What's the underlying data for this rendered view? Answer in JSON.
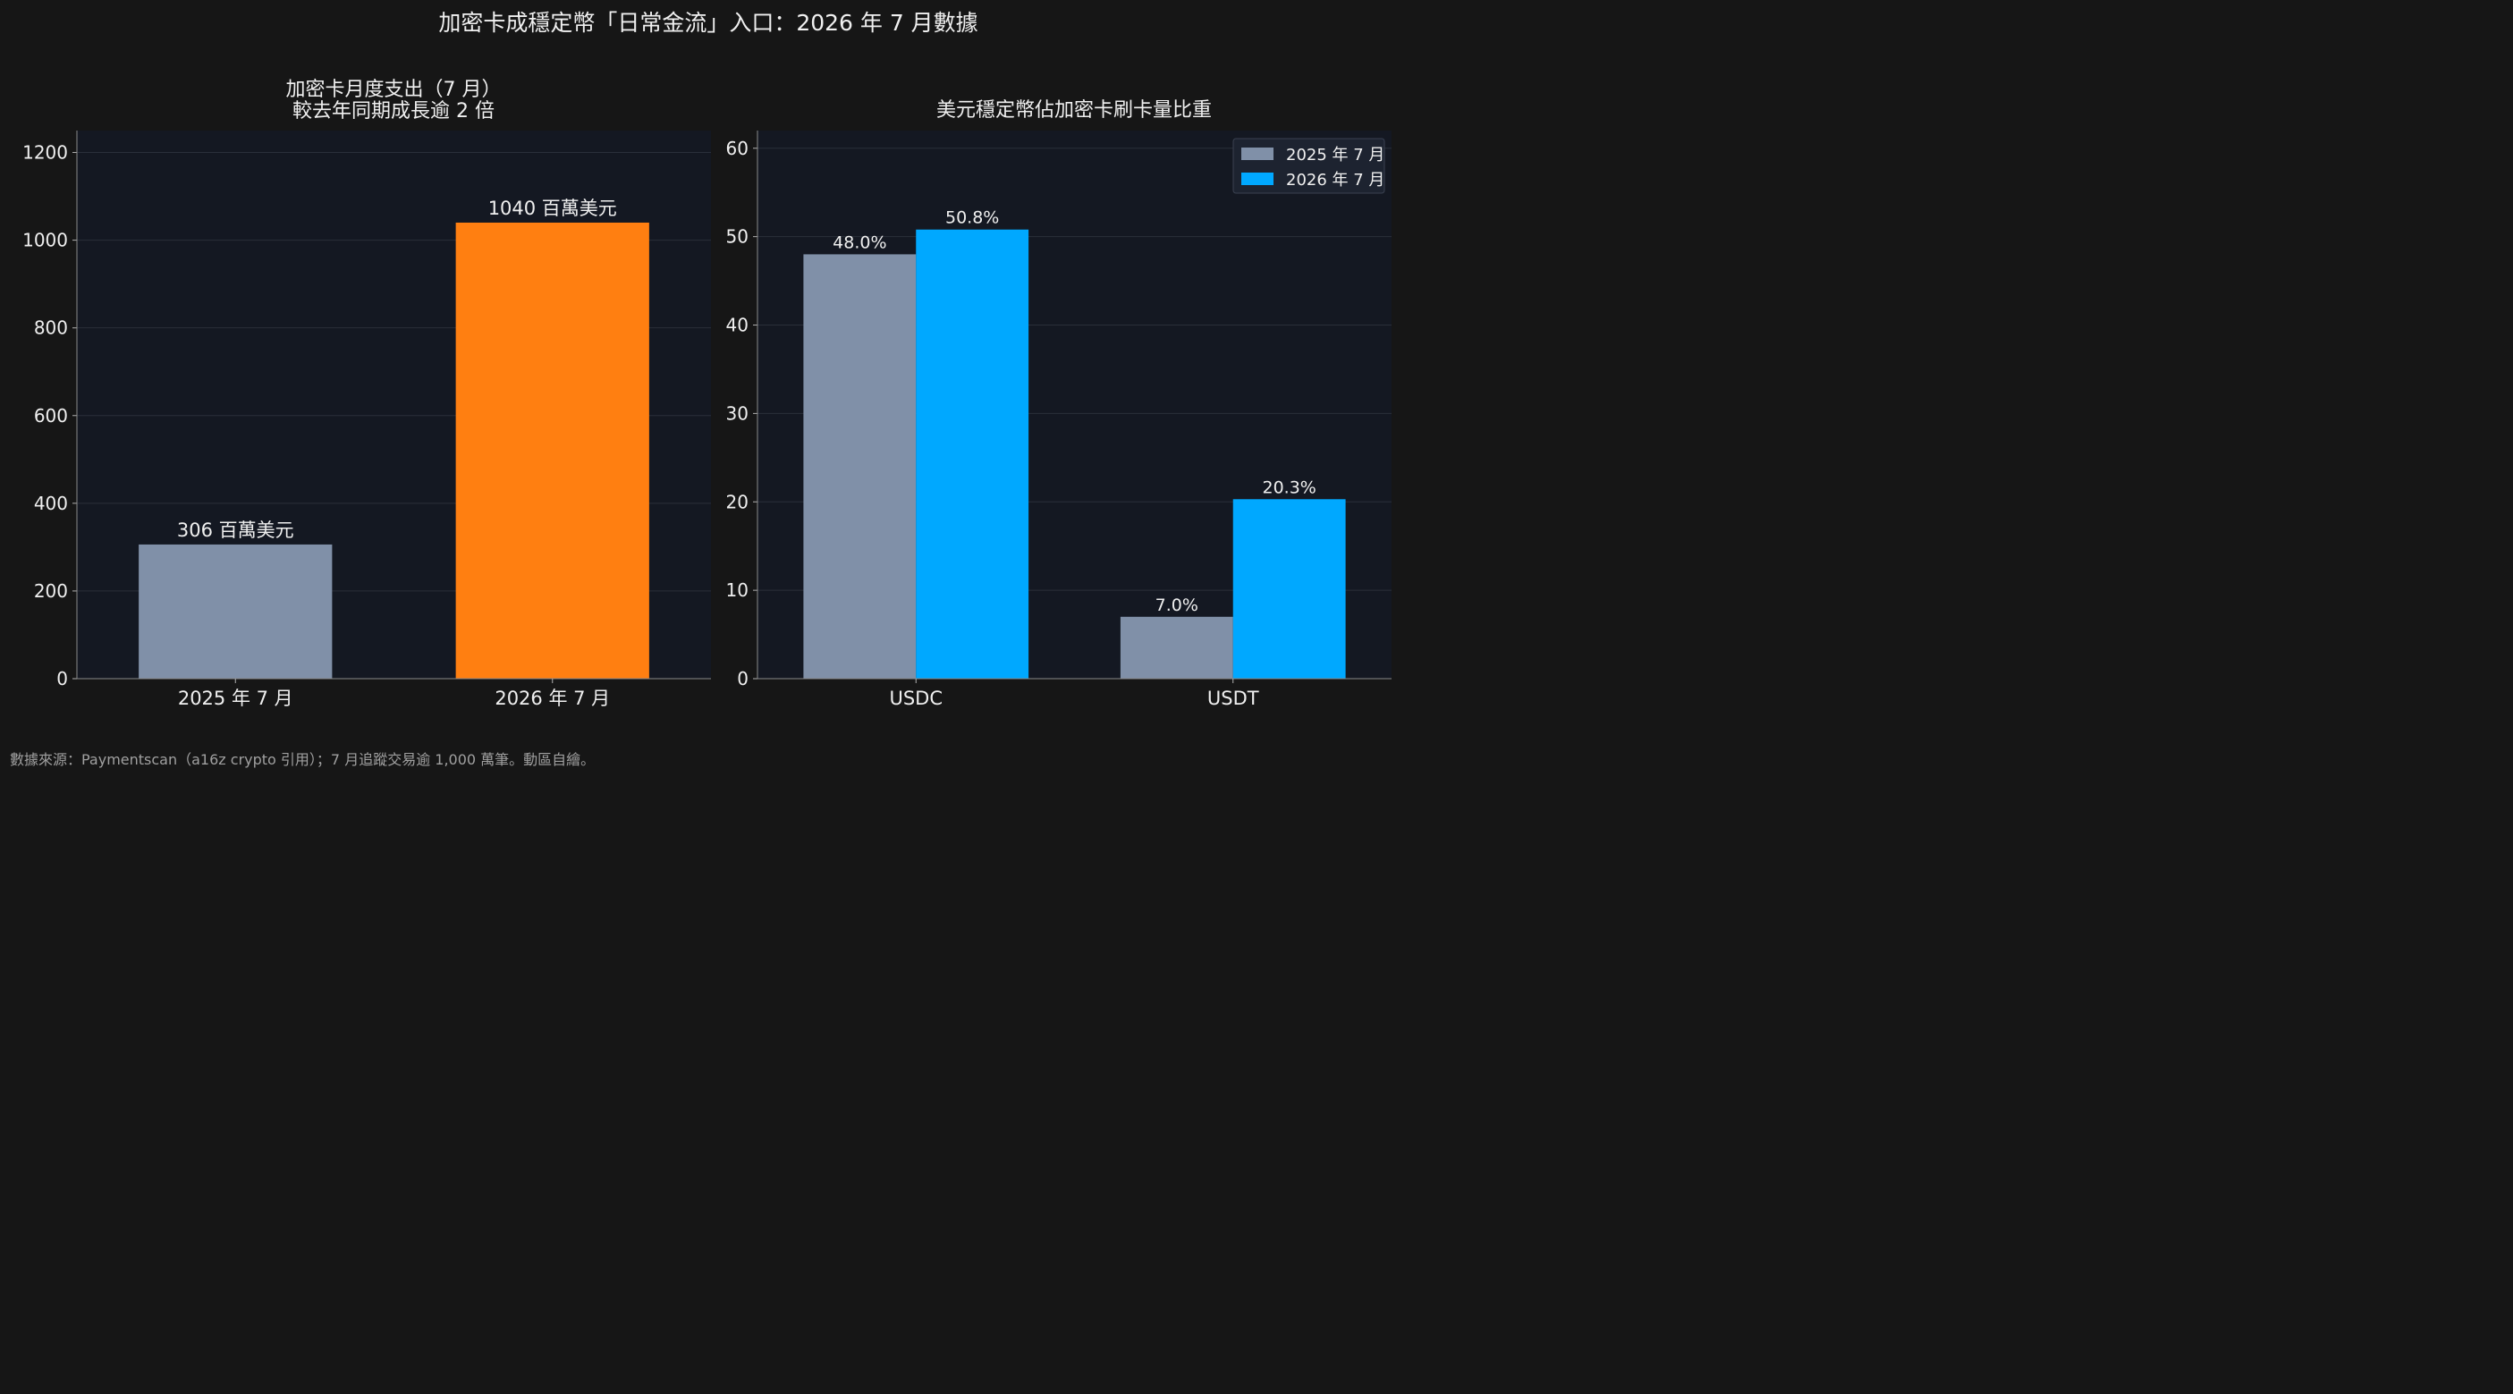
{
  "figure": {
    "title": "加密卡成穩定幣「日常金流」入口：2026 年 7 月數據",
    "footnote": "數據來源：Paymentscan（a16z crypto 引用）；7 月追蹤交易逾 1,000 萬筆。動區自繪。",
    "background": "#161616",
    "panel_background": "#141822",
    "grid_color": "#2a2f3a"
  },
  "chart_data": [
    {
      "type": "bar",
      "title_line1": "加密卡月度支出（7 月）",
      "title_line2": "較去年同期成長逾 2 倍",
      "categories": [
        "2025 年 7 月",
        "2026 年 7 月"
      ],
      "values": [
        306,
        1040
      ],
      "value_labels": [
        "306 百萬美元",
        "1040 百萬美元"
      ],
      "colors": [
        "#8090a8",
        "#ff7f11"
      ],
      "ylim": [
        0,
        1250
      ],
      "yticks": [
        0,
        200,
        400,
        600,
        800,
        1000,
        1200
      ],
      "grid": true
    },
    {
      "type": "bar",
      "title": "美元穩定幣佔加密卡刷卡量比重",
      "categories": [
        "USDC",
        "USDT"
      ],
      "series": [
        {
          "name": "2025 年 7 月",
          "values": [
            48.0,
            7.0
          ],
          "labels": [
            "48.0%",
            "7.0%"
          ],
          "color": "#8090a8"
        },
        {
          "name": "2026 年 7 月",
          "values": [
            50.8,
            20.3
          ],
          "labels": [
            "50.8%",
            "20.3%"
          ],
          "color": "#00a8ff"
        }
      ],
      "ylim": [
        0,
        62
      ],
      "yticks": [
        0,
        10,
        20,
        30,
        40,
        50,
        60
      ],
      "legend": "top-right",
      "grid": true
    }
  ]
}
